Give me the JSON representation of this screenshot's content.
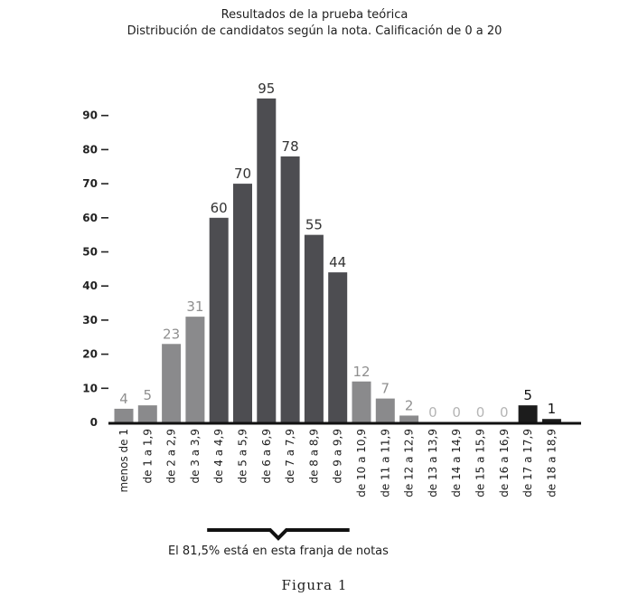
{
  "chart_data": {
    "type": "bar",
    "title": "Resultados de la prueba teórica",
    "subtitle": "Distribución de candidatos según la nota. Calificación de 0 a 20",
    "categories": [
      "menos de 1",
      "de 1 a 1,9",
      "de 2 a 2,9",
      "de 3 a 3,9",
      "de 4 a 4,9",
      "de 5 a 5,9",
      "de 6 a 6,9",
      "de 7 a 7,9",
      "de 8 a 8,9",
      "de 9 a 9,9",
      "de 10 a 10,9",
      "de 11 a 11,9",
      "de 12 a 12,9",
      "de 13 a 13,9",
      "de 14 a 14,9",
      "de 15 a 15,9",
      "de 16 a 16,9",
      "de 17 a 17,9",
      "de 18 a 18,9"
    ],
    "values": [
      4,
      5,
      23,
      31,
      60,
      70,
      95,
      78,
      55,
      44,
      12,
      7,
      2,
      0,
      0,
      0,
      0,
      5,
      1
    ],
    "yticks": [
      "0",
      "10",
      "20",
      "30",
      "40",
      "50",
      "60",
      "70",
      "80",
      "90"
    ],
    "ylim": [
      0,
      100
    ],
    "annotation": "El 81,5% está en esta franja de notas",
    "grid": false
  },
  "caption": "Figura 1",
  "colors": {
    "dark": "#4d4d51",
    "light": "#8a8a8c",
    "black": "#1c1c1c",
    "label_dark": "#333333",
    "label_light": "#8f8f8f",
    "label_zero": "#b5b5b5"
  }
}
